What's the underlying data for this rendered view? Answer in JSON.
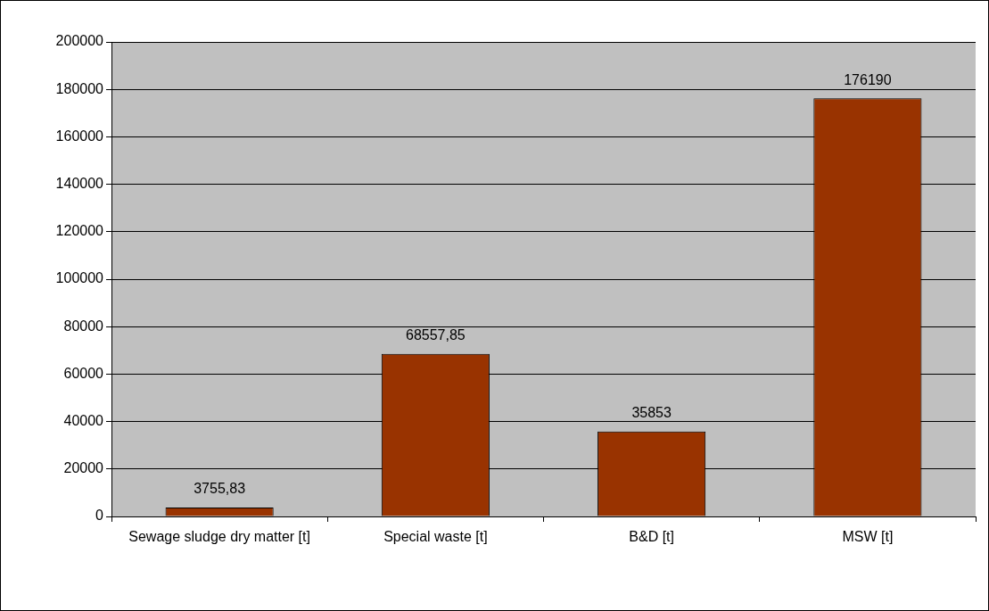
{
  "chart_data": {
    "type": "bar",
    "categories": [
      "Sewage sludge dry matter [t]",
      "Special waste [t]",
      "B&D [t]",
      "MSW [t]"
    ],
    "values": [
      3755.83,
      68557.85,
      35853,
      176190
    ],
    "value_labels": [
      "3755,83",
      "68557,85",
      "35853",
      "176190"
    ],
    "color": "#993300",
    "ylim": [
      0,
      200000
    ],
    "yticks": [
      0,
      20000,
      40000,
      60000,
      80000,
      100000,
      120000,
      140000,
      160000,
      180000,
      200000
    ],
    "grid": "y",
    "legend": false
  }
}
